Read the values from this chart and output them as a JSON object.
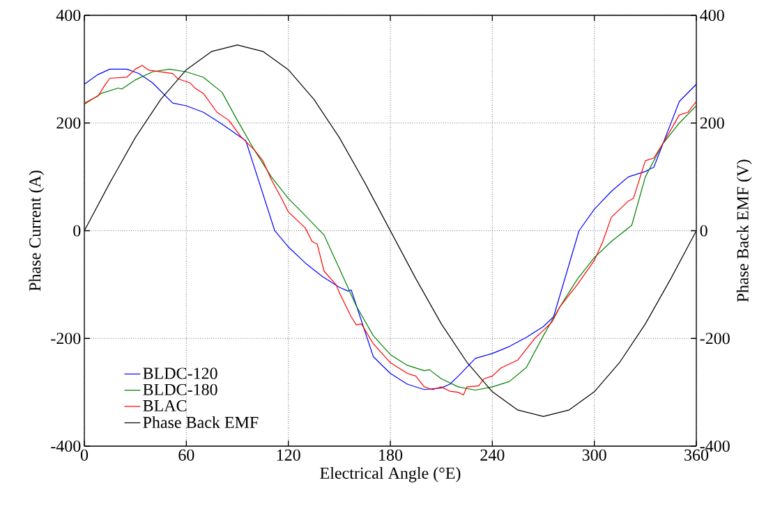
{
  "chart_data": {
    "type": "line",
    "xlabel": "Electrical Angle (°E)",
    "ylabel": "Phase Current (A)",
    "y2label": "Phase Back EMF (V)",
    "xlim": [
      0,
      360
    ],
    "xticks": [
      0,
      60,
      120,
      180,
      240,
      300,
      360
    ],
    "ylim": [
      -400,
      400
    ],
    "yticks": [
      -400,
      -200,
      0,
      200,
      400
    ],
    "y2lim": [
      -400,
      400
    ],
    "y2ticks": [
      -400,
      -200,
      0,
      200,
      400
    ],
    "grid": true,
    "legend": "bottom left",
    "marker": "none",
    "series": [
      {
        "name": "BLDC-120",
        "color": "#0000ff",
        "x": [
          0,
          8,
          15,
          25,
          32,
          40,
          52,
          60,
          70,
          80,
          90,
          95,
          112,
          120,
          130,
          140,
          150,
          155,
          157,
          170,
          180,
          190,
          200,
          210,
          215,
          220,
          230,
          240,
          250,
          260,
          270,
          276,
          291,
          300,
          310,
          320,
          330,
          333,
          335,
          350,
          360
        ],
        "values": [
          272,
          290,
          300,
          300,
          292,
          275,
          237,
          232,
          220,
          200,
          178,
          167,
          0,
          -30,
          -60,
          -85,
          -105,
          -112,
          -110,
          -234,
          -265,
          -285,
          -295,
          -292,
          -285,
          -270,
          -237,
          -228,
          -215,
          -198,
          -178,
          -160,
          0,
          40,
          73,
          100,
          110,
          115,
          118,
          240,
          272
        ]
      },
      {
        "name": "BLDC-180",
        "color": "#008000",
        "x": [
          0,
          10,
          20,
          22,
          30,
          40,
          50,
          60,
          70,
          81,
          90,
          100,
          110,
          120,
          130,
          141,
          150,
          160,
          170,
          180,
          190,
          200,
          203,
          210,
          220,
          230,
          240,
          250,
          260,
          270,
          280,
          290,
          300,
          310,
          322,
          330,
          340,
          350,
          360
        ],
        "values": [
          235,
          255,
          265,
          263,
          280,
          295,
          300,
          295,
          285,
          257,
          205,
          150,
          100,
          60,
          28,
          -8,
          -70,
          -140,
          -195,
          -230,
          -250,
          -260,
          -258,
          -275,
          -290,
          -296,
          -290,
          -280,
          -254,
          -195,
          -140,
          -90,
          -50,
          -20,
          10,
          100,
          160,
          200,
          232
        ]
      },
      {
        "name": "BLAC",
        "color": "#ff0000",
        "x": [
          0,
          8,
          12,
          15,
          25,
          30,
          34,
          38,
          45,
          52,
          55,
          62,
          65,
          70,
          78,
          85,
          92,
          100,
          105,
          110,
          116,
          120,
          130,
          134,
          137,
          141,
          148,
          150,
          157,
          160,
          163,
          170,
          180,
          190,
          195,
          200,
          205,
          210,
          215,
          220,
          223,
          225,
          232,
          235,
          240,
          245,
          255,
          260,
          265,
          270,
          275,
          280,
          290,
          300,
          305,
          310,
          320,
          323,
          330,
          335,
          340,
          350,
          355,
          360
        ],
        "values": [
          237,
          250,
          270,
          283,
          285,
          300,
          307,
          298,
          295,
          292,
          282,
          275,
          265,
          255,
          220,
          205,
          175,
          150,
          130,
          95,
          60,
          35,
          5,
          -20,
          -25,
          -75,
          -100,
          -115,
          -160,
          -175,
          -173,
          -210,
          -245,
          -265,
          -270,
          -290,
          -295,
          -290,
          -298,
          -300,
          -305,
          -290,
          -288,
          -275,
          -270,
          -255,
          -240,
          -220,
          -200,
          -185,
          -170,
          -140,
          -100,
          -55,
          -20,
          25,
          55,
          60,
          130,
          135,
          160,
          215,
          220,
          240
        ]
      },
      {
        "name": "Phase Back EMF",
        "color": "#000000",
        "axis": "y2",
        "x": [
          0,
          15,
          30,
          45,
          60,
          75,
          90,
          105,
          120,
          135,
          150,
          165,
          180,
          195,
          210,
          225,
          240,
          255,
          270,
          285,
          300,
          315,
          330,
          345,
          360
        ],
        "values": [
          0,
          89,
          173,
          244,
          299,
          333,
          345,
          333,
          299,
          244,
          173,
          89,
          0,
          -89,
          -173,
          -244,
          -299,
          -333,
          -345,
          -333,
          -299,
          -244,
          -173,
          -89,
          0
        ]
      }
    ]
  }
}
